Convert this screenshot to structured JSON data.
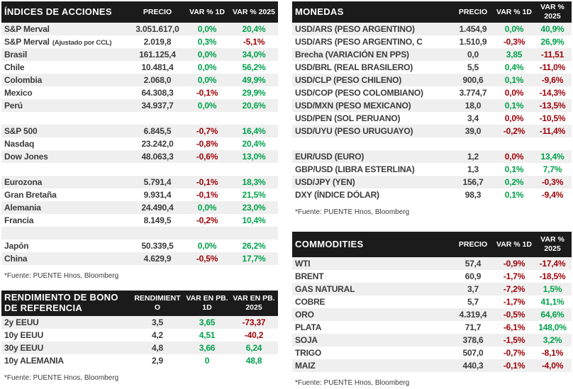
{
  "colors": {
    "up": "#00A14B",
    "down": "#9C0006",
    "header_bg": "#1B1B1B",
    "row_stripe": "#EFEFEF",
    "text": "#3B3B3B"
  },
  "tables": {
    "indices": {
      "title": "ÍNDICES DE ACCIONES",
      "columns": {
        "price": "PRECIO",
        "var1d": "VAR % 1D",
        "var2025": "VAR % 2025"
      },
      "footer": "*Fuente: PUENTE Hnos, Bloomberg",
      "rows": [
        {
          "label": "S&P Merval",
          "price": "3.051.617,0",
          "var1d": "0,0%",
          "var1d_color": "up",
          "var2025": "20,4%",
          "var2025_color": "up"
        },
        {
          "label": "S&P Merval",
          "sublabel": "(Ajustado por CCL)",
          "price": "2.019,8",
          "var1d": "0,3%",
          "var1d_color": "up",
          "var2025": "-5,1%",
          "var2025_color": "down"
        },
        {
          "label": "Brasil",
          "price": "161.125,4",
          "var1d": "0,0%",
          "var1d_color": "up",
          "var2025": "34,0%",
          "var2025_color": "up"
        },
        {
          "label": "Chile",
          "price": "10.481,4",
          "var1d": "0,0%",
          "var1d_color": "up",
          "var2025": "56,2%",
          "var2025_color": "up"
        },
        {
          "label": "Colombia",
          "price": "2.068,0",
          "var1d": "0,0%",
          "var1d_color": "up",
          "var2025": "49,9%",
          "var2025_color": "up"
        },
        {
          "label": "Mexico",
          "price": "64.308,3",
          "var1d": "-0,1%",
          "var1d_color": "down",
          "var2025": "29,9%",
          "var2025_color": "up"
        },
        {
          "label": "Perú",
          "price": "34.937,7",
          "var1d": "0,0%",
          "var1d_color": "up",
          "var2025": "20,6%",
          "var2025_color": "up"
        },
        {
          "spacer": true
        },
        {
          "label": "S&P 500",
          "price": "6.845,5",
          "var1d": "-0,7%",
          "var1d_color": "down",
          "var2025": "16,4%",
          "var2025_color": "up"
        },
        {
          "label": "Nasdaq",
          "price": "23.242,0",
          "var1d": "-0,8%",
          "var1d_color": "down",
          "var2025": "20,4%",
          "var2025_color": "up"
        },
        {
          "label": "Dow Jones",
          "price": "48.063,3",
          "var1d": "-0,6%",
          "var1d_color": "down",
          "var2025": "13,0%",
          "var2025_color": "up"
        },
        {
          "spacer": true
        },
        {
          "label": "Eurozona",
          "price": "5.791,4",
          "var1d": "-0,1%",
          "var1d_color": "down",
          "var2025": "18,3%",
          "var2025_color": "up"
        },
        {
          "label": "Gran Bretaña",
          "price": "9.931,4",
          "var1d": "-0,1%",
          "var1d_color": "down",
          "var2025": "21,5%",
          "var2025_color": "up"
        },
        {
          "label": "Alemania",
          "price": "24.490,4",
          "var1d": "0,0%",
          "var1d_color": "up",
          "var2025": "23,0%",
          "var2025_color": "up"
        },
        {
          "label": "Francia",
          "price": "8.149,5",
          "var1d": "-0,2%",
          "var1d_color": "down",
          "var2025": "10,4%",
          "var2025_color": "up"
        },
        {
          "spacer": true
        },
        {
          "label": "Japón",
          "price": "50.339,5",
          "var1d": "0,0%",
          "var1d_color": "up",
          "var2025": "26,2%",
          "var2025_color": "up"
        },
        {
          "label": "China",
          "price": "4.629,9",
          "var1d": "-0,5%",
          "var1d_color": "down",
          "var2025": "17,7%",
          "var2025_color": "up"
        }
      ]
    },
    "currencies": {
      "title": "MONEDAS",
      "columns": {
        "price": "PRECIO",
        "var1d": "VAR % 1D",
        "var2025": "VAR % 2025"
      },
      "footer": "*Fuente: PUENTE Hnos, Bloomberg",
      "rows": [
        {
          "label": "USD/ARS (PESO ARGENTINO)",
          "price": "1.454,9",
          "var1d": "0,0%",
          "var1d_color": "up",
          "var2025": "40,9%",
          "var2025_color": "up"
        },
        {
          "label": "USD/ARS (PESO ARGENTINO, C",
          "price": "1.510,9",
          "var1d": "-0,3%",
          "var1d_color": "down",
          "var2025": "26,9%",
          "var2025_color": "up"
        },
        {
          "label": "Brecha (VARIACIÓN EN PPS)",
          "price": "0,0",
          "var1d": "3,85",
          "var1d_color": "up",
          "var2025": "-11,51",
          "var2025_color": "down"
        },
        {
          "label": "USD/BRL (REAL BRASILERO)",
          "price": "5,5",
          "var1d": "0,4%",
          "var1d_color": "up",
          "var2025": "-11,0%",
          "var2025_color": "down"
        },
        {
          "label": "USD/CLP (PESO CHILENO)",
          "price": "900,6",
          "var1d": "0,1%",
          "var1d_color": "up",
          "var2025": "-9,6%",
          "var2025_color": "down"
        },
        {
          "label": "USD/COP (PESO COLOMBIANO)",
          "price": "3.774,7",
          "var1d": "0,0%",
          "var1d_color": "down",
          "var2025": "-14,3%",
          "var2025_color": "down"
        },
        {
          "label": "USD/MXN (PESO MEXICANO)",
          "price": "18,0",
          "var1d": "0,1%",
          "var1d_color": "up",
          "var2025": "-13,5%",
          "var2025_color": "down"
        },
        {
          "label": "USD/PEN (SOL PERUANO)",
          "price": "3,4",
          "var1d": "0,0%",
          "var1d_color": "down",
          "var2025": "-10,5%",
          "var2025_color": "down"
        },
        {
          "label": "USD/UYU (PESO URUGUAYO)",
          "price": "39,0",
          "var1d": "-0,2%",
          "var1d_color": "down",
          "var2025": "-11,4%",
          "var2025_color": "down"
        },
        {
          "spacer": true
        },
        {
          "label": "EUR/USD (EURO)",
          "price": "1,2",
          "var1d": "0,0%",
          "var1d_color": "down",
          "var2025": "13,4%",
          "var2025_color": "up"
        },
        {
          "label": "GBP/USD (LIBRA ESTERLINA)",
          "price": "1,3",
          "var1d": "0,1%",
          "var1d_color": "up",
          "var2025": "7,7%",
          "var2025_color": "up"
        },
        {
          "label": "USD/JPY (YEN)",
          "price": "156,7",
          "var1d": "0,2%",
          "var1d_color": "up",
          "var2025": "-0,3%",
          "var2025_color": "down"
        },
        {
          "label": "DXY (ÍNDICE DÓLAR)",
          "price": "98,3",
          "var1d": "0,1%",
          "var1d_color": "up",
          "var2025": "-9,4%",
          "var2025_color": "down"
        }
      ]
    },
    "bonds": {
      "title": "RENDIMIENTO DE BONO DE REFERENCIA",
      "columns": {
        "price": "RENDIMIENTO",
        "var1d": "VAR EN PB. 1D",
        "var2025": "VAR EN PB. 2025"
      },
      "footer": "*Fuente: PUENTE Hnos, Bloomberg",
      "rows": [
        {
          "label": "2y EEUU",
          "price": "3,5",
          "var1d": "3,65",
          "var1d_color": "up",
          "var2025": "-73,37",
          "var2025_color": "down"
        },
        {
          "label": "10y EEUU",
          "price": "4,2",
          "var1d": "4,51",
          "var1d_color": "up",
          "var2025": "-40,2",
          "var2025_color": "down"
        },
        {
          "label": "30y EEUU",
          "price": "4,8",
          "var1d": "3,66",
          "var1d_color": "up",
          "var2025": "6,24",
          "var2025_color": "up"
        },
        {
          "label": "10y ALEMANIA",
          "price": "2,9",
          "var1d": "0",
          "var1d_color": "up",
          "var2025": "48,8",
          "var2025_color": "up"
        }
      ]
    },
    "commodities": {
      "title": "COMMODITIES",
      "columns": {
        "price": "PRECIO",
        "var1d": "VAR % 1D",
        "var2025": "VAR % 2025"
      },
      "footer": "*Fuente: PUENTE Hnos, Bloomberg",
      "rows": [
        {
          "label": "WTI",
          "price": "57,4",
          "var1d": "-0,9%",
          "var1d_color": "down",
          "var2025": "-17,4%",
          "var2025_color": "down"
        },
        {
          "label": "BRENT",
          "price": "60,9",
          "var1d": "-1,7%",
          "var1d_color": "down",
          "var2025": "-18,5%",
          "var2025_color": "down"
        },
        {
          "label": "GAS NATURAL",
          "price": "3,7",
          "var1d": "-7,2%",
          "var1d_color": "down",
          "var2025": "1,5%",
          "var2025_color": "up"
        },
        {
          "label": "COBRE",
          "price": "5,7",
          "var1d": "-1,7%",
          "var1d_color": "down",
          "var2025": "41,1%",
          "var2025_color": "up"
        },
        {
          "label": "ORO",
          "price": "4.319,4",
          "var1d": "-0,5%",
          "var1d_color": "down",
          "var2025": "64,6%",
          "var2025_color": "up"
        },
        {
          "label": "PLATA",
          "price": "71,7",
          "var1d": "-6,1%",
          "var1d_color": "down",
          "var2025": "148,0%",
          "var2025_color": "up"
        },
        {
          "label": "SOJA",
          "price": "378,6",
          "var1d": "-1,5%",
          "var1d_color": "down",
          "var2025": "3,2%",
          "var2025_color": "up"
        },
        {
          "label": "TRIGO",
          "price": "507,0",
          "var1d": "-0,7%",
          "var1d_color": "down",
          "var2025": "-8,1%",
          "var2025_color": "down"
        },
        {
          "label": "MAIZ",
          "price": "440,3",
          "var1d": "-0,1%",
          "var1d_color": "down",
          "var2025": "-4,0%",
          "var2025_color": "down"
        }
      ]
    }
  }
}
